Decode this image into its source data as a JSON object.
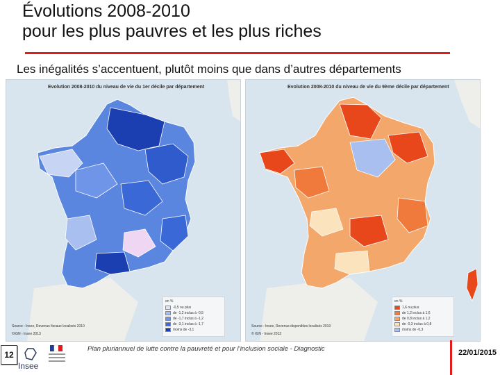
{
  "slide": {
    "title_line1": "Évolutions 2008-2010",
    "title_line2": "pour les plus pauvres et les plus riches",
    "subtitle": "Les inégalités s’accentuent, plutôt moins que dans d’autres départements",
    "page_number": "12",
    "footer_text": "Plan pluriannuel de lutte contre la pauvreté et pour l’inclusion sociale - Diagnostic",
    "date": "22/01/2015",
    "logo_text": "Insee",
    "accent_color": "#e41b1b"
  },
  "maps": [
    {
      "title": "Evolution 2008-2010 du niveau de vie du 1er décile par département",
      "legend_title": "en %",
      "legend": [
        {
          "label": "-0,5 ou plus",
          "color": "#dfe6f7"
        },
        {
          "label": "de -1,2 inclus à -0,5",
          "color": "#a9bff0"
        },
        {
          "label": "de -1,7 inclus à -1,2",
          "color": "#6f95e8"
        },
        {
          "label": "de -3,1 inclus à -1,7",
          "color": "#3a68d6"
        },
        {
          "label": "moins de -3,1",
          "color": "#1b3fb0"
        }
      ],
      "source_line1": "Source : Insee, Revenus fiscaux localisés 2010",
      "source_line2": "©IGN - Insee 2013"
    },
    {
      "title": "Evolution 2008-2010 du niveau de vie du 9ème décile par département",
      "legend_title": "en %",
      "legend": [
        {
          "label": "1,6 ou plus",
          "color": "#e8471c"
        },
        {
          "label": "de 1,2 inclus à 1,6",
          "color": "#f07a3c"
        },
        {
          "label": "de 0,8 inclus à 1,2",
          "color": "#f4a76a"
        },
        {
          "label": "de -0,3 inclus à 0,8",
          "color": "#fbe3bd"
        },
        {
          "label": "moins de -0,3",
          "color": "#a9bff0"
        }
      ],
      "source_line1": "Source : Insee, Revenus disponibles localisés 2010",
      "source_line2": "© IGN - Insee 2013"
    }
  ]
}
